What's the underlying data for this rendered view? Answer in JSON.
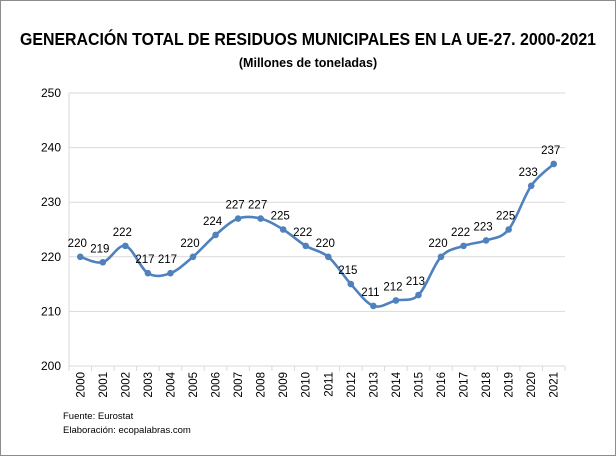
{
  "chart_data": {
    "type": "line",
    "title": "GENERACIÓN TOTAL DE RESIDUOS MUNICIPALES EN LA UE-27. 2000-2021",
    "subtitle": "(Millones de toneladas)",
    "categories": [
      "2000",
      "2001",
      "2002",
      "2003",
      "2004",
      "2005",
      "2006",
      "2007",
      "2008",
      "2009",
      "2010",
      "2011",
      "2012",
      "2013",
      "2014",
      "2015",
      "2016",
      "2017",
      "2018",
      "2019",
      "2020",
      "2021"
    ],
    "values": [
      220,
      219,
      222,
      217,
      217,
      220,
      224,
      227,
      227,
      225,
      222,
      220,
      215,
      211,
      212,
      213,
      220,
      222,
      223,
      225,
      233,
      237
    ],
    "data_labels": [
      "220",
      "219",
      "222",
      "217",
      "217",
      "220",
      "224",
      "227",
      "227",
      "225",
      "222",
      "220",
      "215",
      "211",
      "212",
      "213",
      "220",
      "222",
      "223",
      "225",
      "233",
      "237"
    ],
    "yticks": [
      "200",
      "210",
      "220",
      "230",
      "240",
      "250"
    ],
    "ylim": [
      200,
      250
    ],
    "grid": "horizontal",
    "smoothed": true,
    "line_color": "#4f81bd",
    "legend": "none"
  },
  "notes": {
    "source": "Fuente: Eurostat",
    "credit": "Elaboración: ecopalabras.com"
  }
}
